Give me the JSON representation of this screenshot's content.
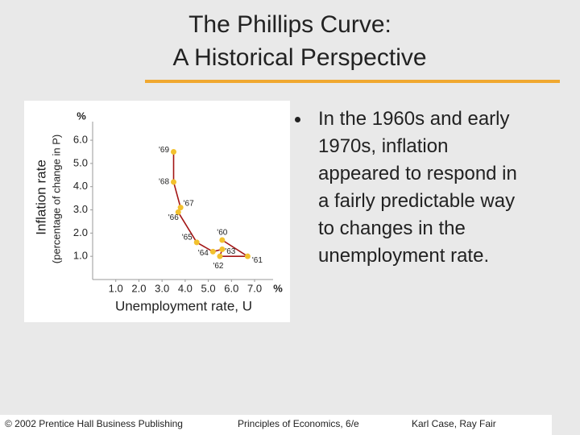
{
  "header": {
    "title": "The Phillips Curve:",
    "subtitle": "A Historical Perspective"
  },
  "bullet": "In the 1960s and early 1970s, inflation appeared to respond in a fairly predictable way to changes in the unemployment rate.",
  "footer": {
    "left": "© 2002 Prentice Hall Business Publishing",
    "center": "Principles of Economics, 6/e",
    "right": "Karl Case, Ray Fair"
  },
  "chart_data": {
    "type": "line",
    "y_label": "Inflation rate",
    "y_sublabel": "(percentage of change in P)",
    "y_unit": "%",
    "x_label": "Unemployment rate, U",
    "x_unit": "%",
    "x": [
      5.6,
      6.7,
      5.5,
      5.6,
      5.2,
      4.5,
      3.7,
      3.8,
      3.5,
      3.5
    ],
    "series": [
      {
        "color": "#a31515",
        "marker_color": "#f2c12e",
        "values": [
          1.7,
          1.0,
          1.0,
          1.3,
          1.2,
          1.6,
          2.9,
          3.1,
          4.2,
          5.5
        ],
        "point_labels": [
          "'60",
          "'61",
          "'62",
          "'63",
          "'64",
          "'65",
          "'66",
          "'67",
          "'68",
          "'69"
        ]
      }
    ],
    "xlim": [
      0,
      7.8
    ],
    "ylim": [
      0,
      6.8
    ],
    "xticks": [
      {
        "value": 1,
        "label": "1.0"
      },
      {
        "value": 2,
        "label": "2.0"
      },
      {
        "value": 3,
        "label": "3.0"
      },
      {
        "value": 4,
        "label": "4.0"
      },
      {
        "value": 5,
        "label": "5.0"
      },
      {
        "value": 6,
        "label": "6.0"
      },
      {
        "value": 7,
        "label": "7.0"
      }
    ],
    "yticks": [
      {
        "value": 1,
        "label": "1.0"
      },
      {
        "value": 2,
        "label": "2.0"
      },
      {
        "value": 3,
        "label": "3.0"
      },
      {
        "value": 4,
        "label": "4.0"
      },
      {
        "value": 5,
        "label": "5.0"
      },
      {
        "value": 6,
        "label": "6.0"
      }
    ]
  }
}
